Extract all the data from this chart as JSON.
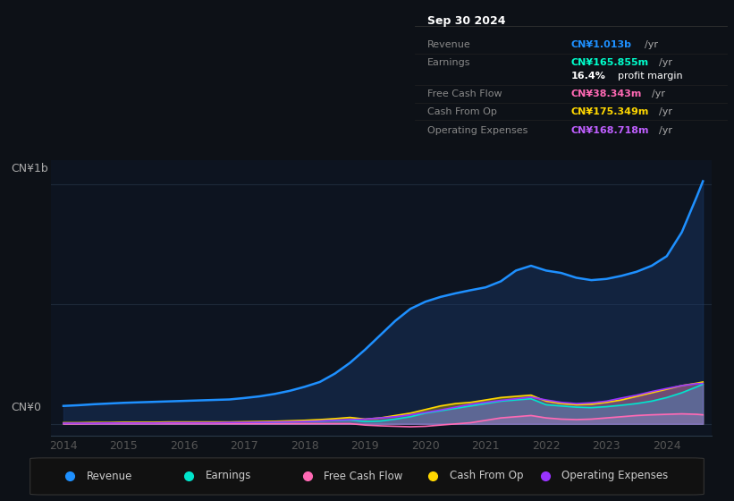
{
  "bg_color": "#0d1117",
  "plot_bg_color": "#0d1420",
  "grid_color": "#1e2a3a",
  "title_box": {
    "date": "Sep 30 2024",
    "rows": [
      {
        "label": "Revenue",
        "value": "CN¥1.013b /yr",
        "value_color": "#1e90ff"
      },
      {
        "label": "Earnings",
        "value": "CN¥165.855m /yr",
        "value_color": "#00ffcc"
      },
      {
        "label": "",
        "value": "16.4% profit margin",
        "value_color": "#ffffff"
      },
      {
        "label": "Free Cash Flow",
        "value": "CN¥38.343m /yr",
        "value_color": "#ff69b4"
      },
      {
        "label": "Cash From Op",
        "value": "CN¥175.349m /yr",
        "value_color": "#ffd700"
      },
      {
        "label": "Operating Expenses",
        "value": "CN¥168.718m /yr",
        "value_color": "#bf5fff"
      }
    ]
  },
  "ylabel_top": "CN¥1b",
  "ylabel_bottom": "CN¥0",
  "years": [
    2014,
    2014.25,
    2014.5,
    2014.75,
    2015,
    2015.25,
    2015.5,
    2015.75,
    2016,
    2016.25,
    2016.5,
    2016.75,
    2017,
    2017.25,
    2017.5,
    2017.75,
    2018,
    2018.25,
    2018.5,
    2018.75,
    2019,
    2019.25,
    2019.5,
    2019.75,
    2020,
    2020.25,
    2020.5,
    2020.75,
    2021,
    2021.25,
    2021.5,
    2021.75,
    2022,
    2022.25,
    2022.5,
    2022.75,
    2023,
    2023.25,
    2023.5,
    2023.75,
    2024,
    2024.25,
    2024.5,
    2024.6
  ],
  "revenue": [
    0.075,
    0.078,
    0.082,
    0.085,
    0.088,
    0.09,
    0.092,
    0.094,
    0.096,
    0.098,
    0.1,
    0.102,
    0.108,
    0.115,
    0.125,
    0.138,
    0.155,
    0.175,
    0.21,
    0.255,
    0.31,
    0.37,
    0.43,
    0.48,
    0.51,
    0.53,
    0.545,
    0.558,
    0.57,
    0.595,
    0.64,
    0.66,
    0.64,
    0.63,
    0.61,
    0.6,
    0.605,
    0.618,
    0.635,
    0.66,
    0.7,
    0.8,
    0.95,
    1.013
  ],
  "earnings": [
    0.002,
    0.002,
    0.003,
    0.003,
    0.004,
    0.004,
    0.004,
    0.005,
    0.005,
    0.005,
    0.005,
    0.006,
    0.006,
    0.007,
    0.008,
    0.009,
    0.01,
    0.012,
    0.014,
    0.016,
    0.01,
    0.012,
    0.02,
    0.03,
    0.045,
    0.055,
    0.065,
    0.075,
    0.085,
    0.095,
    0.1,
    0.105,
    0.08,
    0.075,
    0.07,
    0.068,
    0.072,
    0.078,
    0.085,
    0.095,
    0.11,
    0.13,
    0.155,
    0.166
  ],
  "free_cash_flow": [
    0.0,
    0.0,
    0.001,
    0.001,
    0.001,
    0.001,
    0.001,
    0.001,
    0.001,
    0.001,
    0.001,
    0.001,
    0.001,
    0.001,
    0.001,
    0.001,
    0.001,
    0.001,
    0.001,
    0.001,
    -0.005,
    -0.008,
    -0.01,
    -0.012,
    -0.01,
    -0.005,
    0.0,
    0.005,
    0.015,
    0.025,
    0.03,
    0.035,
    0.025,
    0.02,
    0.018,
    0.02,
    0.025,
    0.03,
    0.035,
    0.038,
    0.04,
    0.042,
    0.04,
    0.038
  ],
  "cash_from_op": [
    0.005,
    0.005,
    0.006,
    0.006,
    0.007,
    0.007,
    0.007,
    0.008,
    0.008,
    0.008,
    0.008,
    0.008,
    0.009,
    0.01,
    0.011,
    0.013,
    0.015,
    0.018,
    0.022,
    0.027,
    0.02,
    0.025,
    0.035,
    0.045,
    0.06,
    0.075,
    0.085,
    0.09,
    0.1,
    0.11,
    0.115,
    0.12,
    0.095,
    0.085,
    0.08,
    0.082,
    0.09,
    0.1,
    0.115,
    0.13,
    0.145,
    0.16,
    0.17,
    0.175
  ],
  "op_expenses": [
    0.003,
    0.003,
    0.003,
    0.004,
    0.004,
    0.004,
    0.004,
    0.005,
    0.005,
    0.005,
    0.005,
    0.006,
    0.006,
    0.007,
    0.008,
    0.009,
    0.01,
    0.012,
    0.015,
    0.018,
    0.02,
    0.025,
    0.03,
    0.038,
    0.048,
    0.058,
    0.07,
    0.082,
    0.09,
    0.098,
    0.105,
    0.112,
    0.1,
    0.09,
    0.085,
    0.088,
    0.095,
    0.108,
    0.12,
    0.135,
    0.148,
    0.16,
    0.168,
    0.169
  ],
  "revenue_color": "#1e90ff",
  "earnings_color": "#00e5cc",
  "fcf_color": "#ff69b4",
  "cash_op_color": "#ffd700",
  "op_exp_color": "#9933ff",
  "revenue_fill": "#1a3a6e",
  "legend_items": [
    {
      "label": "Revenue",
      "color": "#1e90ff"
    },
    {
      "label": "Earnings",
      "color": "#00e5cc"
    },
    {
      "label": "Free Cash Flow",
      "color": "#ff69b4"
    },
    {
      "label": "Cash From Op",
      "color": "#ffd700"
    },
    {
      "label": "Operating Expenses",
      "color": "#9933ff"
    }
  ],
  "xticks": [
    2014,
    2015,
    2016,
    2017,
    2018,
    2019,
    2020,
    2021,
    2022,
    2023,
    2024
  ],
  "ylim": [
    -0.05,
    1.1
  ],
  "xlim": [
    2013.8,
    2024.75
  ]
}
